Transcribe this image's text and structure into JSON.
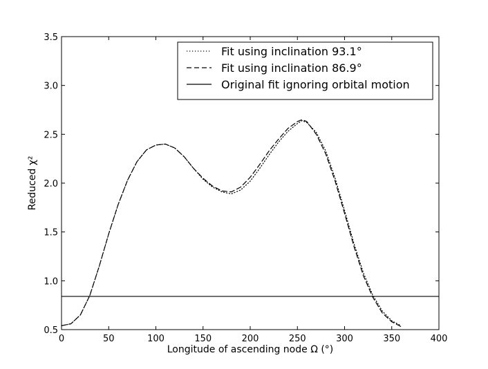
{
  "chart_data": {
    "type": "line",
    "title": "",
    "xlabel": "Longitude of ascending node Ω (°)",
    "ylabel": "Reduced χ²",
    "xlim": [
      0,
      400
    ],
    "ylim": [
      0.5,
      3.5
    ],
    "xticks": [
      0,
      50,
      100,
      150,
      200,
      250,
      300,
      350,
      400
    ],
    "xtick_labels": [
      "0",
      "50",
      "100",
      "150",
      "200",
      "250",
      "300",
      "350",
      "400"
    ],
    "yticks": [
      0.5,
      1.0,
      1.5,
      2.0,
      2.5,
      3.0,
      3.5
    ],
    "ytick_labels": [
      "0.5",
      "1.0",
      "1.5",
      "2.0",
      "2.5",
      "3.0",
      "3.5"
    ],
    "grid": false,
    "legend_position": "top-right",
    "series": [
      {
        "name": "Fit using inclination 93.1°",
        "style": "dotted",
        "x": [
          0,
          10,
          20,
          30,
          40,
          50,
          60,
          70,
          80,
          90,
          100,
          110,
          120,
          130,
          140,
          150,
          160,
          170,
          180,
          190,
          200,
          210,
          220,
          230,
          240,
          250,
          255,
          260,
          270,
          280,
          290,
          300,
          310,
          320,
          330,
          340,
          350,
          360
        ],
        "y": [
          0.54,
          0.56,
          0.65,
          0.85,
          1.15,
          1.48,
          1.78,
          2.03,
          2.22,
          2.34,
          2.39,
          2.4,
          2.36,
          2.27,
          2.15,
          2.04,
          1.96,
          1.91,
          1.89,
          1.93,
          2.02,
          2.15,
          2.29,
          2.42,
          2.53,
          2.61,
          2.64,
          2.62,
          2.52,
          2.33,
          2.05,
          1.72,
          1.38,
          1.08,
          0.85,
          0.69,
          0.59,
          0.54
        ]
      },
      {
        "name": "Fit using inclination 86.9°",
        "style": "dashed",
        "x": [
          0,
          10,
          20,
          30,
          40,
          50,
          60,
          70,
          80,
          90,
          100,
          110,
          120,
          130,
          140,
          150,
          160,
          170,
          180,
          190,
          200,
          210,
          220,
          230,
          240,
          250,
          255,
          260,
          270,
          280,
          290,
          300,
          310,
          320,
          330,
          340,
          350,
          360
        ],
        "y": [
          0.54,
          0.56,
          0.65,
          0.85,
          1.15,
          1.48,
          1.78,
          2.03,
          2.22,
          2.34,
          2.39,
          2.4,
          2.36,
          2.27,
          2.15,
          2.05,
          1.97,
          1.92,
          1.91,
          1.96,
          2.06,
          2.19,
          2.33,
          2.45,
          2.56,
          2.63,
          2.65,
          2.63,
          2.5,
          2.3,
          2.02,
          1.69,
          1.35,
          1.05,
          0.83,
          0.67,
          0.58,
          0.53
        ]
      },
      {
        "name": "Original fit ignoring orbital motion",
        "style": "solid",
        "x": [
          0,
          400
        ],
        "y": [
          0.84,
          0.84
        ]
      }
    ]
  }
}
